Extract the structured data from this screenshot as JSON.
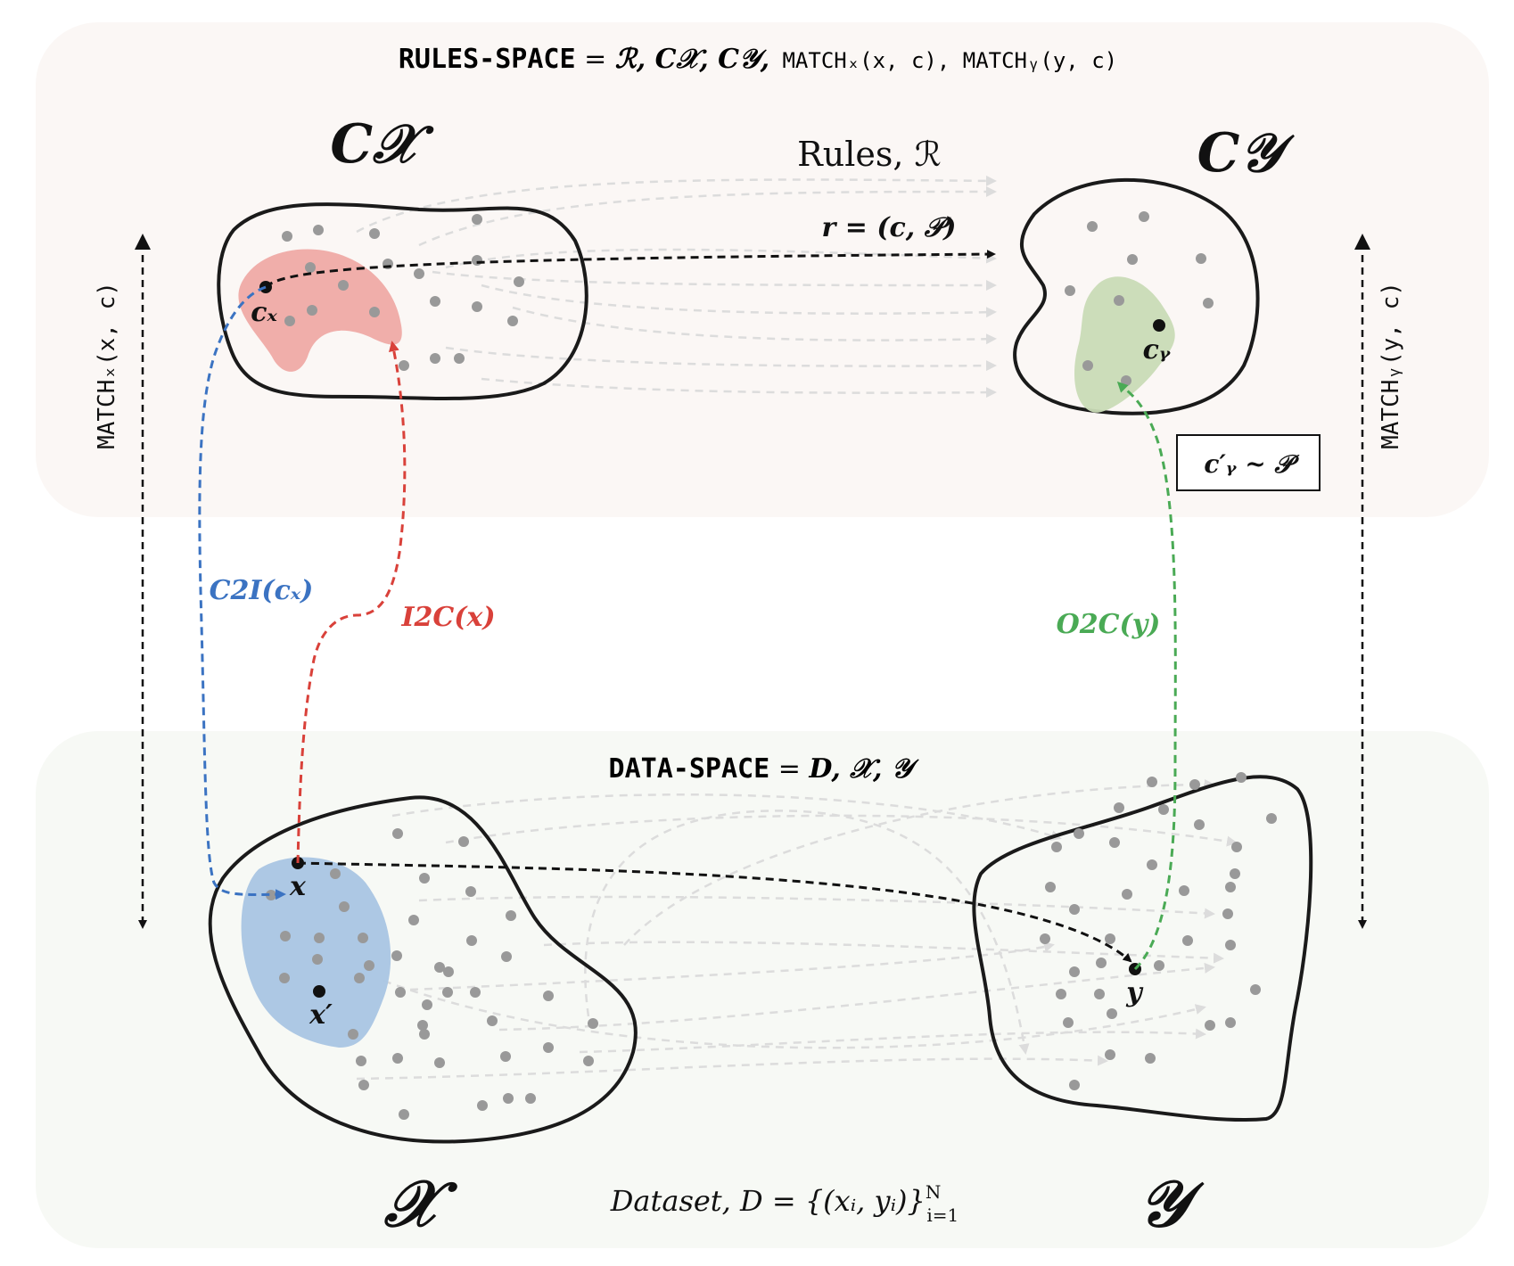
{
  "rules_space": {
    "title_keyword": "RULES-SPACE",
    "title_equals": " = ",
    "title_bold": "ℛ, C𝒳, C𝒴,",
    "title_match": " MATCHₓ(x, c), MATCHᵧ(y, c)",
    "cx_label": "C𝒳",
    "cy_label": "C𝒴",
    "rules_label": "Rules, ℛ",
    "rule_formula": "r = (c, 𝒫)",
    "cx_point": "cₓ",
    "cy_point": "cᵧ",
    "sample_box": "c′ᵧ ~ 𝒫"
  },
  "data_space": {
    "title_keyword": "DATA-SPACE",
    "title_equals": " = ",
    "title_bold": "D, 𝒳, 𝒴",
    "x_set_label": "𝒳",
    "y_set_label": "𝒴",
    "x_point": "x",
    "x_prime_point": "x′",
    "y_point": "y",
    "dataset_label": "Dataset, D = {(xᵢ, yᵢ)}",
    "dataset_sup": "N",
    "dataset_sub": "i=1"
  },
  "side_labels": {
    "left": "MATCHₓ(x, c)",
    "right": "MATCHᵧ(y, c)"
  },
  "arrows": {
    "c2i": "C2I(cₓ)",
    "i2c": "I2C(x)",
    "o2c": "O2C(y)"
  },
  "colors": {
    "rules_bg": "#fbf7f5",
    "data_bg": "#f7f9f5",
    "red": "#d9413a",
    "blue": "#3b73c2",
    "green": "#4aaa55",
    "red_region": "#eea5a2",
    "blue_region": "#a9c5e3",
    "green_region": "#c9dbb6",
    "dot": "#999999",
    "ghost": "#dddddd"
  }
}
